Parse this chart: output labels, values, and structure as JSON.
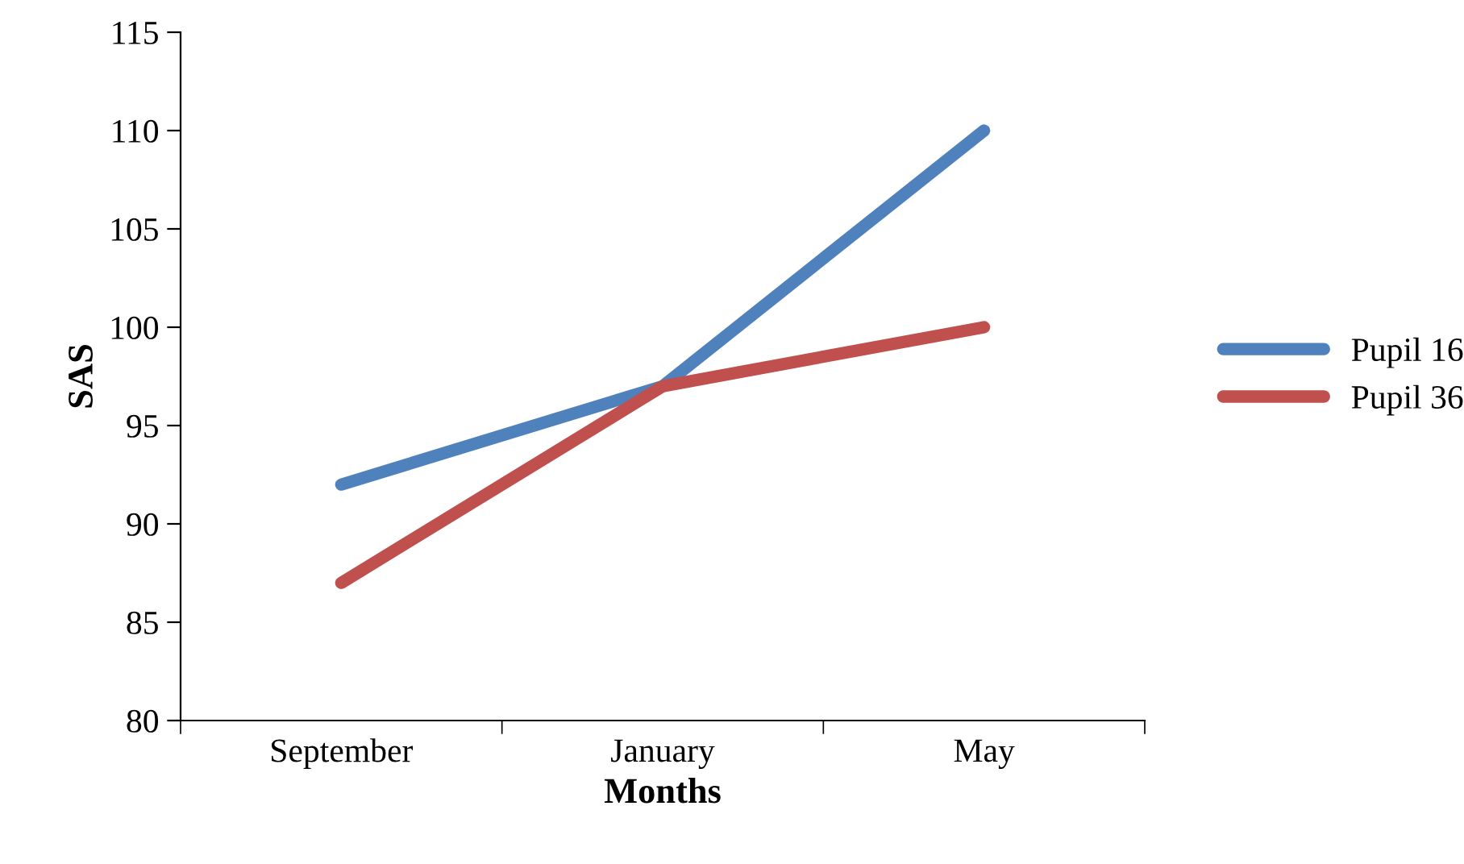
{
  "chart_data": {
    "type": "line",
    "xlabel": "Months",
    "ylabel": "SAS",
    "categories": [
      "September",
      "January",
      "May"
    ],
    "series": [
      {
        "name": "Pupil 16",
        "color": "#4f81bd",
        "values": [
          92,
          97,
          110
        ]
      },
      {
        "name": "Pupil 36",
        "color": "#c0504d",
        "values": [
          87,
          97,
          100
        ]
      }
    ],
    "ylim": [
      80,
      115
    ],
    "yticks": [
      80,
      85,
      90,
      95,
      100,
      105,
      110,
      115
    ],
    "grid": false,
    "legend": "right",
    "marker": "none",
    "line_style": "solid"
  }
}
